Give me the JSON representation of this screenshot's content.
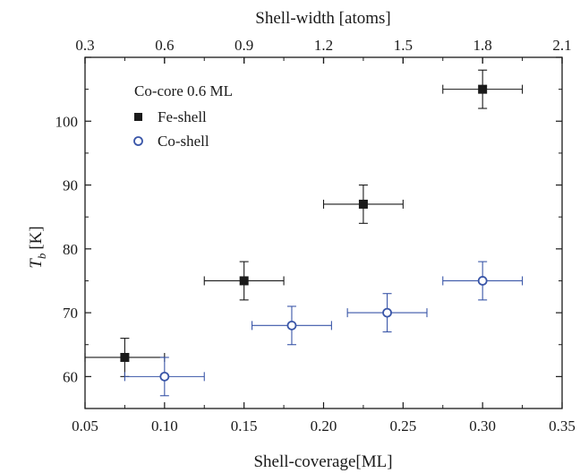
{
  "chart_data": {
    "type": "scatter",
    "xlabel": "Shell-coverage[ML]",
    "ylabel_main": "T",
    "ylabel_sub": "b",
    "ylabel_unit": "[K]",
    "top_xlabel": "Shell-width [atoms]",
    "xlim": [
      0.05,
      0.35
    ],
    "ylim": [
      55,
      110
    ],
    "top_xlim": [
      0.3,
      2.1
    ],
    "x_ticks": [
      "0.05",
      "0.10",
      "0.15",
      "0.20",
      "0.25",
      "0.30",
      "0.35"
    ],
    "y_ticks": [
      "60",
      "70",
      "80",
      "90",
      "100"
    ],
    "top_x_ticks": [
      "0.3",
      "0.6",
      "0.9",
      "1.2",
      "1.5",
      "1.8",
      "2.1"
    ],
    "legend_title": "Co-core 0.6 ML",
    "legend_placement": "top-left",
    "grid": false,
    "series": [
      {
        "name": "Fe-shell",
        "marker": "filled-square",
        "color": "#1a1a1a",
        "points": [
          {
            "x": 0.075,
            "y": 63,
            "xerr": 0.025,
            "yerr": 3
          },
          {
            "x": 0.15,
            "y": 75,
            "xerr": 0.025,
            "yerr": 3
          },
          {
            "x": 0.225,
            "y": 87,
            "xerr": 0.025,
            "yerr": 3
          },
          {
            "x": 0.3,
            "y": 105,
            "xerr": 0.025,
            "yerr": 3
          }
        ]
      },
      {
        "name": "Co-shell",
        "marker": "open-circle",
        "color": "#3a56a8",
        "points": [
          {
            "x": 0.1,
            "y": 60,
            "xerr": 0.025,
            "yerr": 3
          },
          {
            "x": 0.18,
            "y": 68,
            "xerr": 0.025,
            "yerr": 3
          },
          {
            "x": 0.24,
            "y": 70,
            "xerr": 0.025,
            "yerr": 3
          },
          {
            "x": 0.3,
            "y": 75,
            "xerr": 0.025,
            "yerr": 3
          }
        ]
      }
    ]
  }
}
